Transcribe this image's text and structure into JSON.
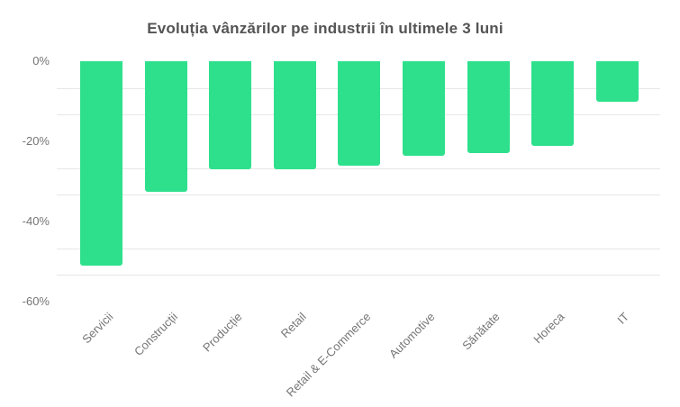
{
  "page": {
    "background": "#ffffff"
  },
  "chart_data": {
    "type": "bar",
    "title": "Evoluția vânzărilor pe industrii în ultimele 3 luni",
    "orientation": "vertical-negative",
    "categories": [
      "Servicii",
      "Construcții",
      "Producție",
      "Retail",
      "Retail & E-Commerce",
      "Automotive",
      "Sănătate",
      "Horeca",
      "IT"
    ],
    "values": [
      -51,
      -32.5,
      -27,
      -27,
      -26,
      -23.5,
      -23,
      -21,
      -10
    ],
    "unit": "%",
    "xlabel": "",
    "ylabel": "",
    "ylim": [
      -60,
      0
    ],
    "y_tick_labels": [
      "0%",
      "-20%",
      "-40%",
      "-60%"
    ],
    "y_tick_values": [
      0,
      -20,
      -40,
      -60
    ],
    "minor_gridline_values": [
      -6.67,
      -13.33,
      -26.67,
      -33.33,
      -46.67,
      -53.33
    ],
    "x_label_rotation_deg": -45,
    "grid": "horizontal-minor-only",
    "legend": "none",
    "colors": {
      "bar": "#2ee08c",
      "gridline": "#e7e7e7",
      "axis_label": "#757575",
      "title": "#545454",
      "background": "#ffffff"
    }
  }
}
